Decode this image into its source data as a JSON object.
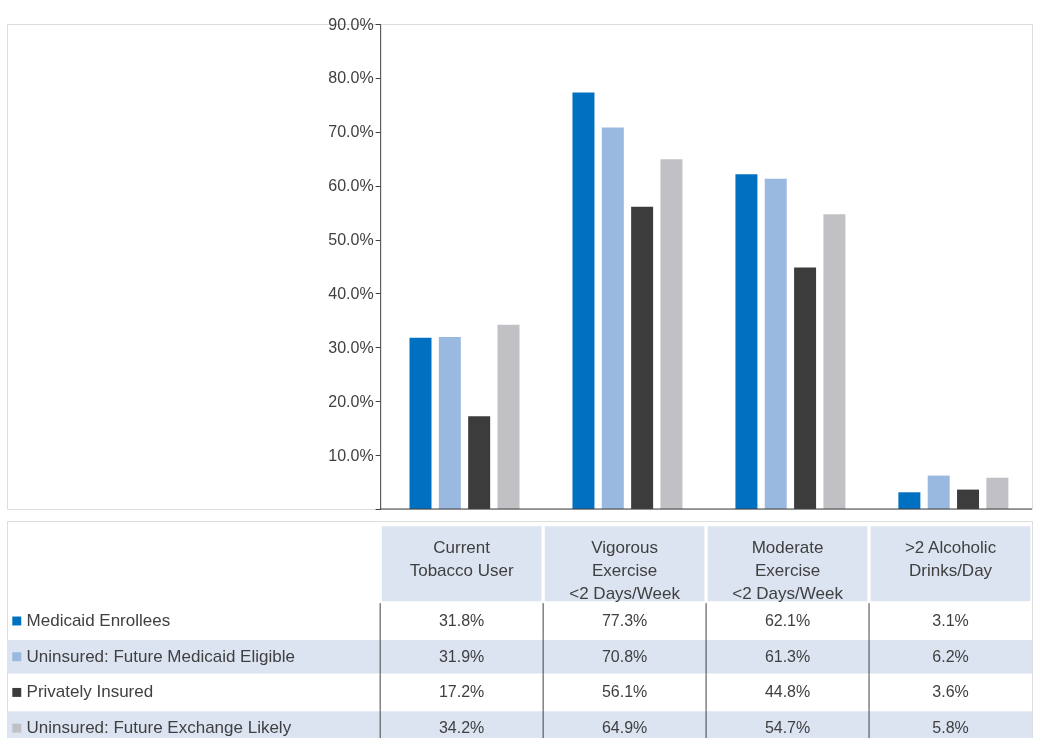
{
  "chart_data": {
    "type": "bar",
    "categories": [
      "Current\nTobacco User",
      "Vigorous\nExercise\n<2 Days/Week",
      "Moderate\nExercise\n<2 Days/Week",
      ">2 Alcoholic\nDrinks/Day"
    ],
    "series": [
      {
        "name": "Medicaid Enrollees",
        "color": "#0070c0",
        "values": [
          31.8,
          77.3,
          62.1,
          3.1
        ],
        "value_labels": [
          "31.8%",
          "77.3%",
          "62.1%",
          "3.1%"
        ]
      },
      {
        "name": "Uninsured: Future Medicaid Eligible",
        "color": "#9ab9e1",
        "values": [
          31.9,
          70.8,
          61.3,
          6.2
        ],
        "value_labels": [
          "31.9%",
          "70.8%",
          "61.3%",
          "6.2%"
        ]
      },
      {
        "name": "Privately Insured",
        "color": "#3c3c3c",
        "values": [
          17.2,
          56.1,
          44.8,
          3.6
        ],
        "value_labels": [
          "17.2%",
          "56.1%",
          "44.8%",
          "3.6%"
        ]
      },
      {
        "name": "Uninsured: Future Exchange Likely",
        "color": "#c1c1c5",
        "values": [
          34.2,
          64.9,
          54.7,
          5.8
        ],
        "value_labels": [
          "34.2%",
          "64.9%",
          "54.7%",
          "5.8%"
        ]
      }
    ],
    "ylim": [
      0,
      90
    ],
    "yticks": [
      {
        "value": 0,
        "label": null
      },
      {
        "value": 10,
        "label": "10.0%"
      },
      {
        "value": 20,
        "label": "20.0%"
      },
      {
        "value": 30,
        "label": "30.0%"
      },
      {
        "value": 40,
        "label": "40.0%"
      },
      {
        "value": 50,
        "label": "50.0%"
      },
      {
        "value": 60,
        "label": "60.0%"
      },
      {
        "value": 70,
        "label": "70.0%"
      },
      {
        "value": 80,
        "label": "80.0%"
      },
      {
        "value": 90,
        "label": "90.0%"
      }
    ],
    "grid": false,
    "legend": "bottom left",
    "data_labels": true
  }
}
